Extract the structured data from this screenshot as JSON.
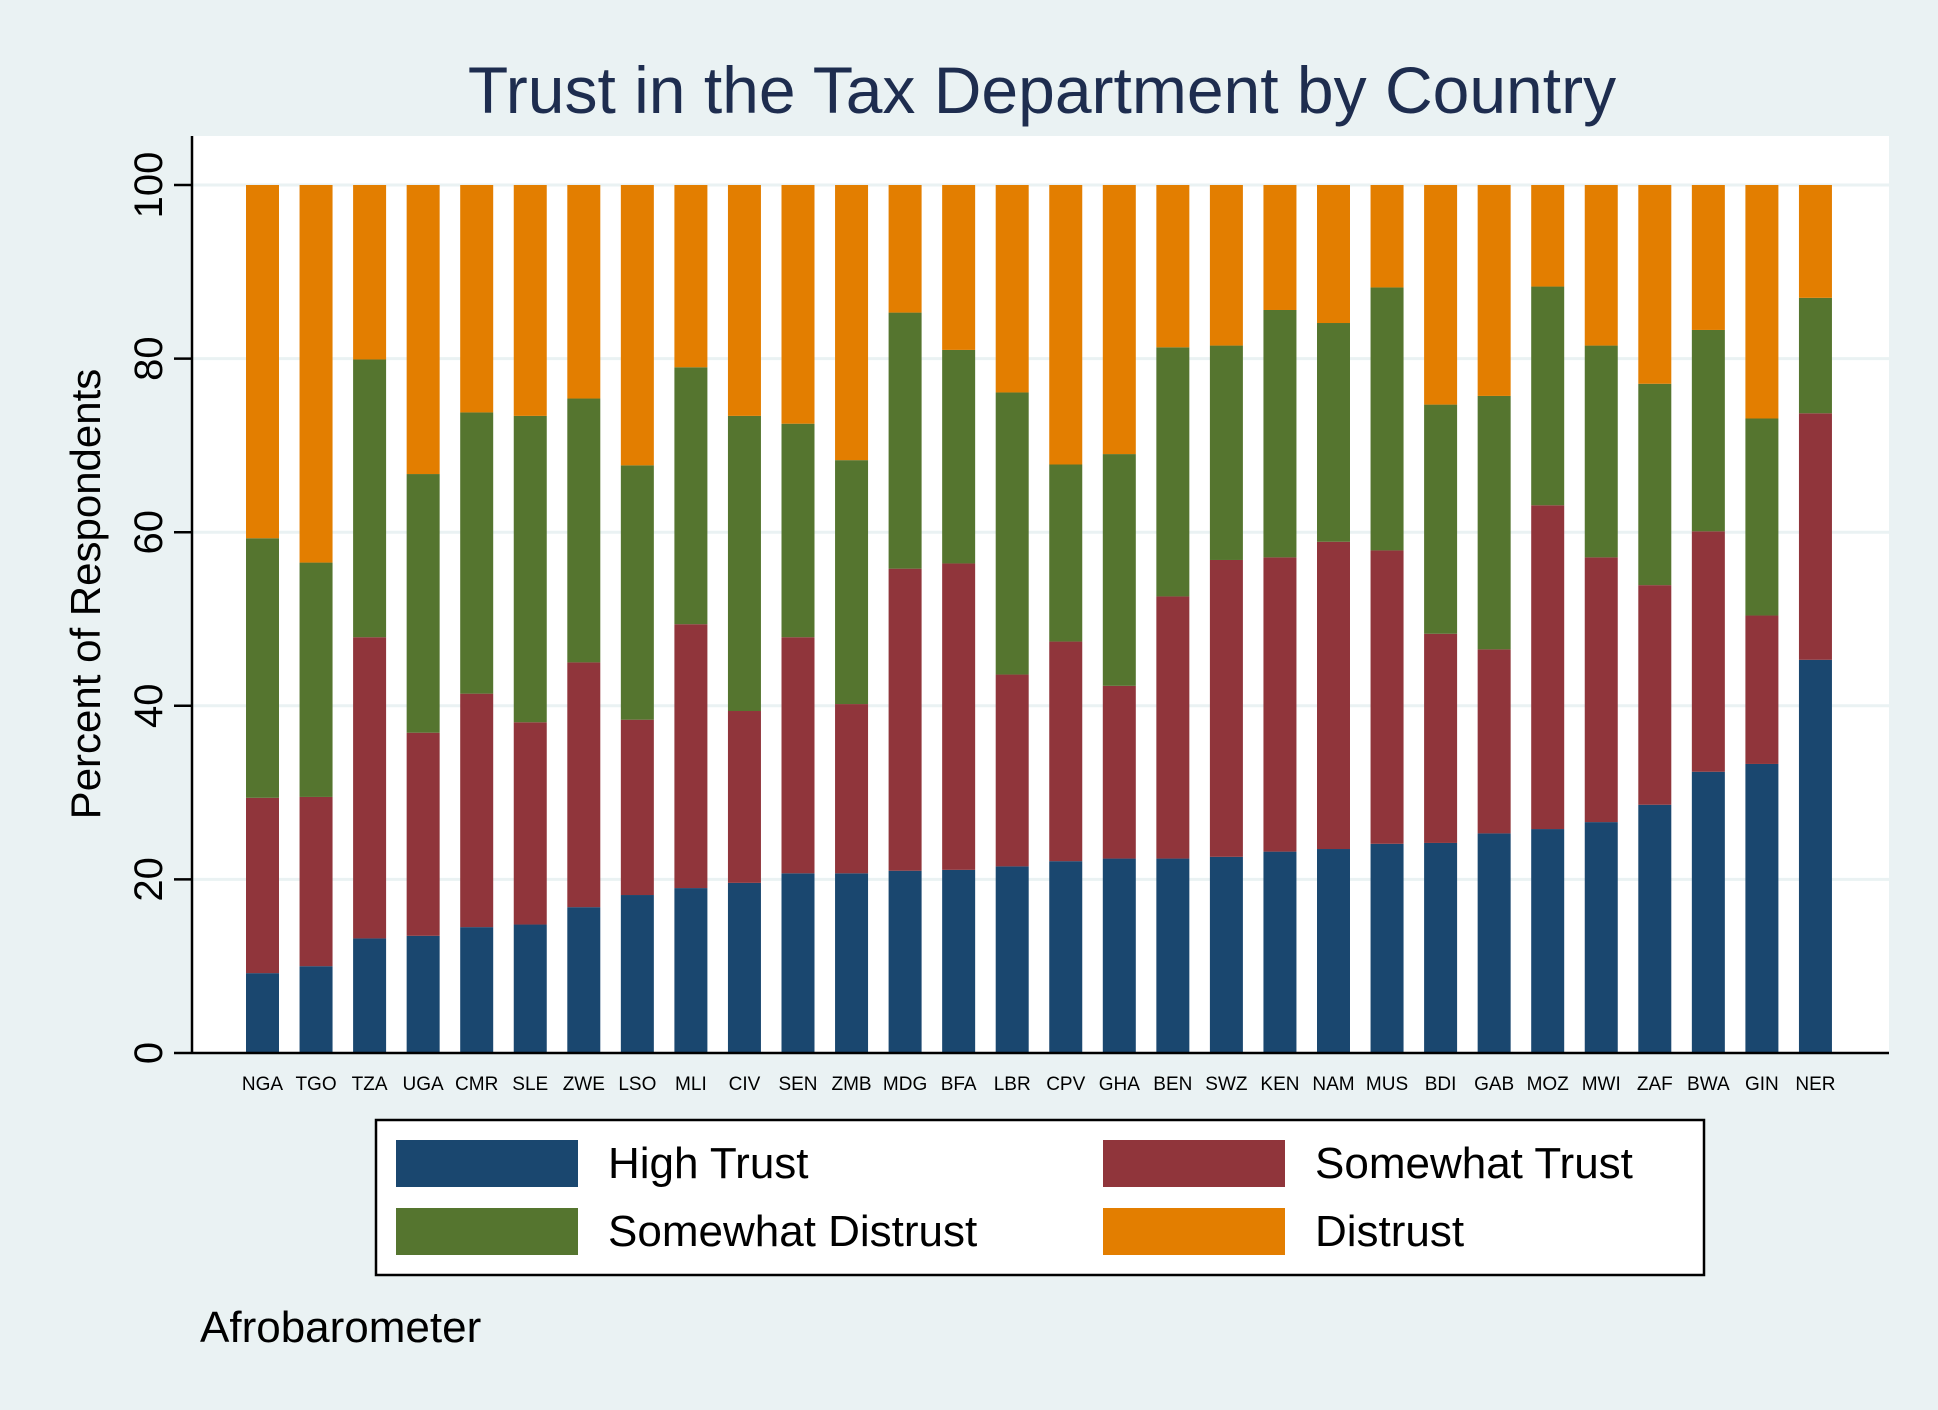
{
  "chart_data": {
    "type": "bar",
    "stacked": true,
    "title": "Trust in the Tax Department by Country",
    "xlabel": "",
    "ylabel": "Percent of Respondents",
    "ylim": [
      0,
      105
    ],
    "yticks": [
      0,
      20,
      40,
      60,
      80,
      100
    ],
    "grid": true,
    "legend_position": "bottom",
    "note": "Afrobarometer",
    "categories": [
      "NGA",
      "TGO",
      "TZA",
      "UGA",
      "CMR",
      "SLE",
      "ZWE",
      "LSO",
      "MLI",
      "CIV",
      "SEN",
      "ZMB",
      "MDG",
      "BFA",
      "LBR",
      "CPV",
      "GHA",
      "BEN",
      "SWZ",
      "KEN",
      "NAM",
      "MUS",
      "BDI",
      "GAB",
      "MOZ",
      "MWI",
      "ZAF",
      "BWA",
      "GIN",
      "NER"
    ],
    "series": [
      {
        "name": "High Trust",
        "color": "#1a476f",
        "values": [
          9.2,
          10.0,
          13.2,
          13.5,
          14.5,
          14.8,
          16.8,
          18.2,
          19.0,
          19.6,
          20.7,
          20.7,
          21.0,
          21.1,
          21.5,
          22.1,
          22.4,
          22.4,
          22.6,
          23.2,
          23.5,
          24.1,
          24.2,
          25.3,
          25.8,
          26.6,
          28.6,
          32.4,
          33.3,
          45.3
        ]
      },
      {
        "name": "Somewhat Trust",
        "color": "#90353b",
        "values": [
          20.2,
          19.5,
          34.7,
          23.4,
          26.9,
          23.3,
          28.2,
          20.2,
          30.4,
          19.8,
          27.2,
          19.5,
          34.8,
          35.3,
          22.1,
          25.3,
          19.9,
          30.2,
          34.2,
          33.9,
          35.4,
          33.8,
          24.1,
          21.2,
          37.3,
          30.5,
          25.3,
          27.7,
          17.1,
          28.4
        ]
      },
      {
        "name": "Somewhat Distrust",
        "color": "#55752f",
        "values": [
          29.9,
          27.0,
          32.0,
          29.8,
          32.4,
          35.3,
          30.4,
          29.3,
          29.6,
          34.0,
          24.6,
          28.1,
          29.5,
          24.6,
          32.5,
          20.4,
          26.7,
          28.7,
          24.7,
          28.5,
          25.2,
          30.3,
          26.4,
          29.2,
          25.2,
          24.4,
          23.2,
          23.2,
          22.7,
          13.3
        ]
      },
      {
        "name": "Distrust",
        "color": "#e37e00",
        "values": [
          40.7,
          43.5,
          20.1,
          33.3,
          26.2,
          26.6,
          24.6,
          32.3,
          21.0,
          26.6,
          27.5,
          31.7,
          14.7,
          19.0,
          23.9,
          32.2,
          31.0,
          18.7,
          18.5,
          14.4,
          15.9,
          11.8,
          25.3,
          24.3,
          11.7,
          18.5,
          22.9,
          16.7,
          26.9,
          13.0
        ]
      }
    ]
  }
}
